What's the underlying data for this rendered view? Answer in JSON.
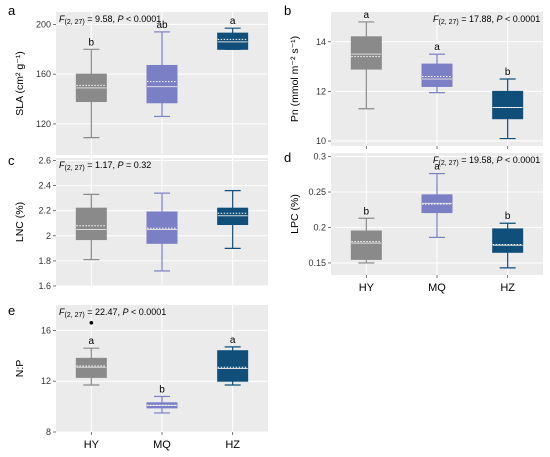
{
  "colors": {
    "HY": "#8a8a8a",
    "MQ": "#7b80c6",
    "HZ": "#0f4f7a",
    "panel_bg": "#ebebeb",
    "grid": "#ffffff"
  },
  "chart_data": [
    {
      "type": "box",
      "panel": "a",
      "stat_label": "F(2, 27) = 9.58, P < 0.0001",
      "ylabel": "SLA (cm² g⁻¹)",
      "ylim": [
        95,
        210
      ],
      "yticks": [
        120,
        160,
        200
      ],
      "categories": [
        "HY",
        "MQ",
        "HZ"
      ],
      "show_x_labels": false,
      "boxes": [
        {
          "category": "HY",
          "min": 109,
          "q1": 138,
          "median": 149,
          "mean": 151,
          "q3": 160,
          "max": 180,
          "letter": "b",
          "outliers": []
        },
        {
          "category": "MQ",
          "min": 126,
          "q1": 137,
          "median": 150,
          "mean": 154,
          "q3": 167,
          "max": 194,
          "letter": "ab",
          "outliers": []
        },
        {
          "category": "HZ",
          "min": 180,
          "q1": 180,
          "median": 186,
          "mean": 188,
          "q3": 193,
          "max": 197,
          "letter": "a",
          "outliers": []
        }
      ]
    },
    {
      "type": "box",
      "panel": "b",
      "stat_label": "F(2, 27) = 17.88, P < 0.0001",
      "ylabel": "Pn (mmol m⁻² s⁻¹)",
      "ylim": [
        9.8,
        15.2
      ],
      "yticks": [
        10,
        12,
        14
      ],
      "categories": [
        "HY",
        "MQ",
        "HZ"
      ],
      "show_x_labels": true,
      "boxes": [
        {
          "category": "HY",
          "min": 11.3,
          "q1": 12.9,
          "median": 13.5,
          "mean": 13.4,
          "q3": 14.2,
          "max": 14.8,
          "letter": "a",
          "outliers": []
        },
        {
          "category": "MQ",
          "min": 11.95,
          "q1": 12.2,
          "median": 12.5,
          "mean": 12.6,
          "q3": 13.1,
          "max": 13.5,
          "letter": "a",
          "outliers": []
        },
        {
          "category": "HZ",
          "min": 10.1,
          "q1": 10.9,
          "median": 11.35,
          "mean": 11.35,
          "q3": 12.0,
          "max": 12.5,
          "letter": "b",
          "outliers": []
        }
      ]
    },
    {
      "type": "box",
      "panel": "c",
      "stat_label": "F(2, 27) = 1.17, P = 0.32",
      "ylabel": "LNC (%)",
      "ylim": [
        1.6,
        2.62
      ],
      "yticks": [
        1.6,
        1.8,
        2.0,
        2.2,
        2.4,
        2.6
      ],
      "categories": [
        "HY",
        "MQ",
        "HZ"
      ],
      "show_x_labels": false,
      "boxes": [
        {
          "category": "HY",
          "min": 1.81,
          "q1": 1.97,
          "median": 2.05,
          "mean": 2.08,
          "q3": 2.22,
          "max": 2.33,
          "letter": "",
          "outliers": []
        },
        {
          "category": "MQ",
          "min": 1.72,
          "q1": 1.94,
          "median": 2.05,
          "mean": 2.06,
          "q3": 2.19,
          "max": 2.34,
          "letter": "",
          "outliers": []
        },
        {
          "category": "HZ",
          "min": 1.9,
          "q1": 2.09,
          "median": 2.16,
          "mean": 2.18,
          "q3": 2.22,
          "max": 2.36,
          "letter": "",
          "outliers": []
        }
      ]
    },
    {
      "type": "box",
      "panel": "d",
      "stat_label": "F(2, 27) = 19.58, P < 0.0001",
      "ylabel": "LPC (%)",
      "ylim": [
        0.133,
        0.305
      ],
      "yticks": [
        0.15,
        0.2,
        0.25,
        0.3
      ],
      "categories": [
        "HY",
        "MQ",
        "HZ"
      ],
      "show_x_labels": true,
      "boxes": [
        {
          "category": "HY",
          "min": 0.15,
          "q1": 0.155,
          "median": 0.178,
          "mean": 0.18,
          "q3": 0.195,
          "max": 0.213,
          "letter": "b",
          "outliers": []
        },
        {
          "category": "MQ",
          "min": 0.186,
          "q1": 0.221,
          "median": 0.234,
          "mean": 0.233,
          "q3": 0.246,
          "max": 0.276,
          "letter": "a",
          "outliers": []
        },
        {
          "category": "HZ",
          "min": 0.143,
          "q1": 0.165,
          "median": 0.175,
          "mean": 0.176,
          "q3": 0.198,
          "max": 0.206,
          "letter": "b",
          "outliers": []
        }
      ]
    },
    {
      "type": "box",
      "panel": "e",
      "stat_label": "F(2, 27) = 22.47, P < 0.0001",
      "ylabel": "N:P",
      "ylim": [
        8,
        18
      ],
      "yticks": [
        8,
        12,
        16
      ],
      "categories": [
        "HY",
        "MQ",
        "HZ"
      ],
      "show_x_labels": true,
      "boxes": [
        {
          "category": "HY",
          "min": 11.7,
          "q1": 12.3,
          "median": 13.1,
          "mean": 13.2,
          "q3": 13.8,
          "max": 14.6,
          "letter": "a",
          "outliers": [
            16.6
          ]
        },
        {
          "category": "MQ",
          "min": 9.5,
          "q1": 9.9,
          "median": 10.1,
          "mean": 10.1,
          "q3": 10.3,
          "max": 10.8,
          "letter": "b",
          "outliers": []
        },
        {
          "category": "HZ",
          "min": 11.7,
          "q1": 12.0,
          "median": 13.0,
          "mean": 13.1,
          "q3": 14.4,
          "max": 14.7,
          "letter": "a",
          "outliers": []
        }
      ]
    }
  ]
}
